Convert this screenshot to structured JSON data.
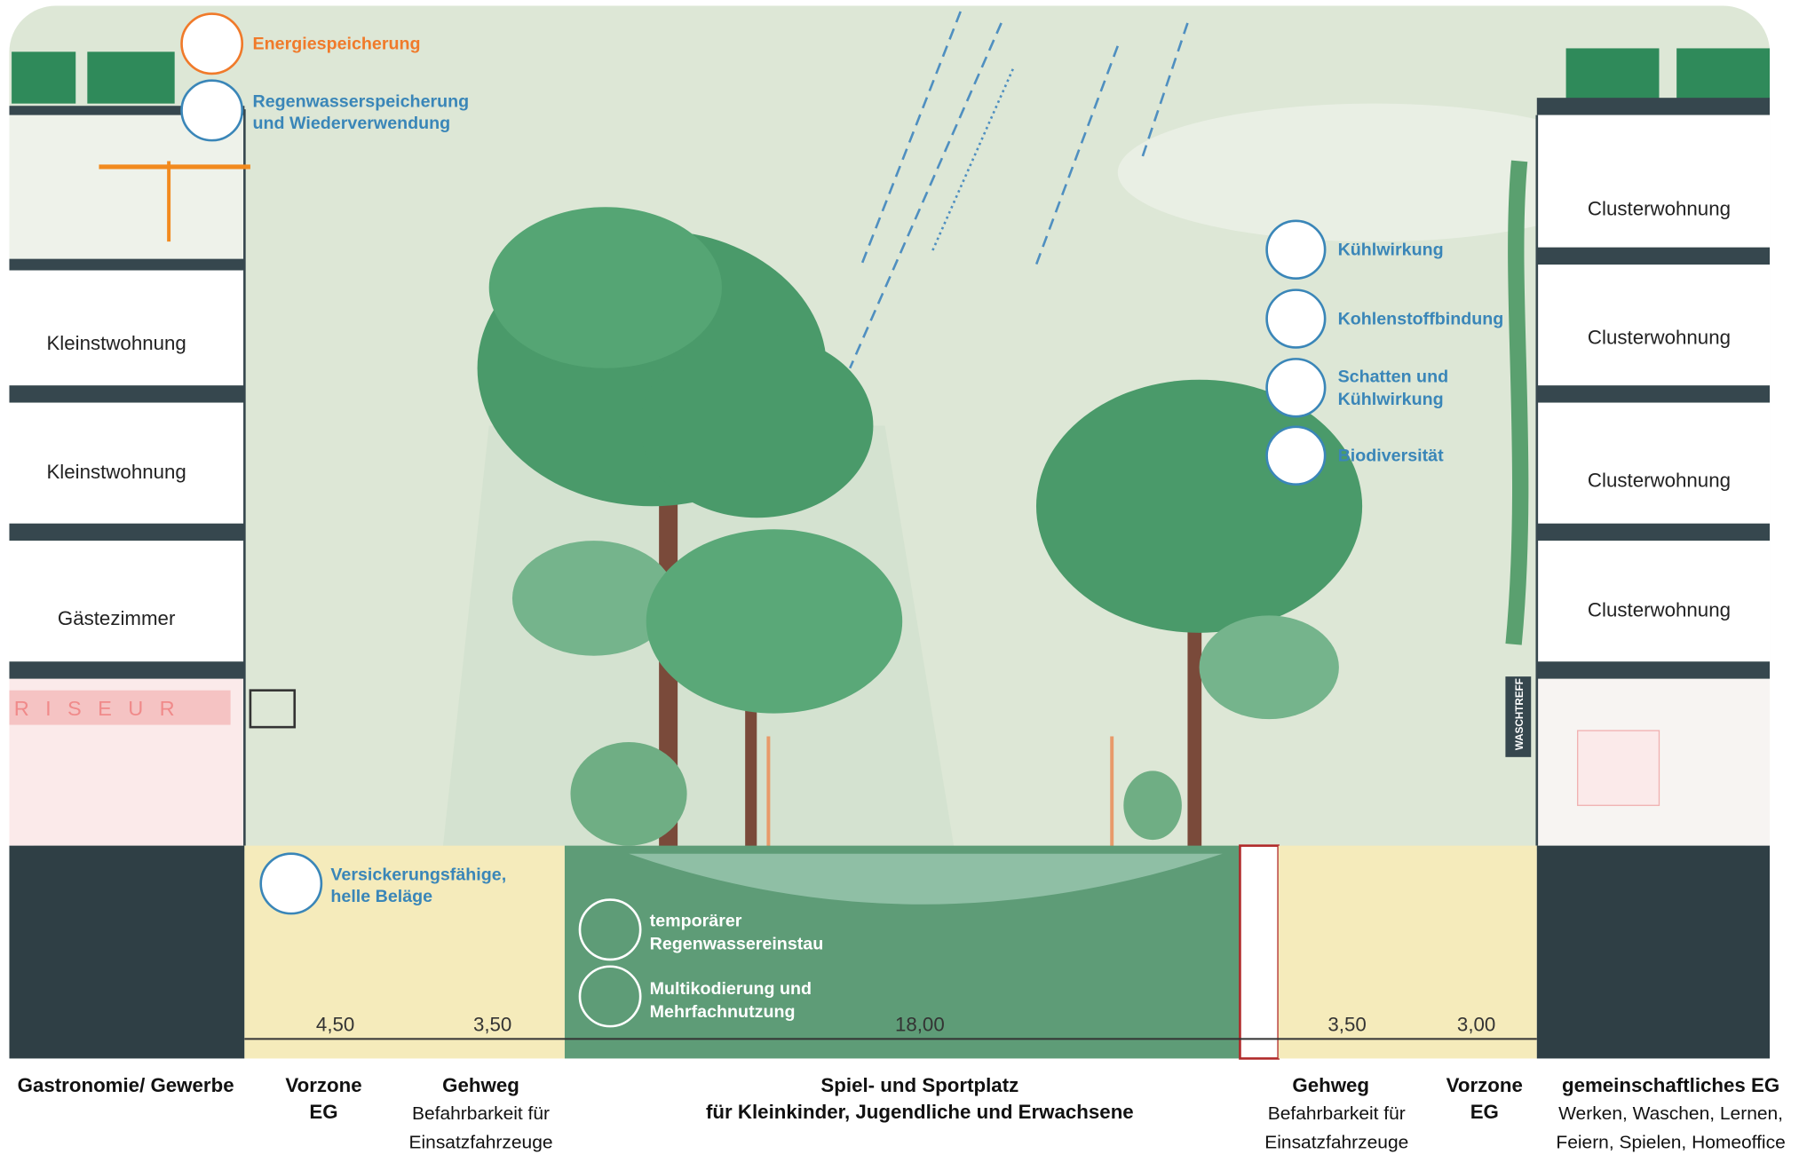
{
  "benefits_top": [
    [
      "Energiespeicherung"
    ],
    [
      "Regenwasserspeicherung",
      "und Wiederverwendung"
    ]
  ],
  "left_building": {
    "rooms": [
      "Kleinstwohnung",
      "Kleinstwohnung",
      "Gästezimmer"
    ],
    "shop_sign": "RISEUR"
  },
  "right_building": {
    "rooms": [
      "Clusterwohnung",
      "Clusterwohnung",
      "Clusterwohnung",
      "Clusterwohnung"
    ],
    "sign": "WASCHTREFF"
  },
  "benefits_right": [
    [
      "Kühlwirkung"
    ],
    [
      "Kohlenstoffbindung"
    ],
    [
      "Schatten und",
      "Kühlwirkung"
    ],
    [
      "Biodiversität"
    ]
  ],
  "ground_labels": [
    [
      "Versickerungsfähige,",
      "helle Beläge"
    ],
    [
      "temporärer",
      "Regenwassereinstau"
    ],
    [
      "Multikodierung und",
      "Mehrfachnutzung"
    ]
  ],
  "dimensions": [
    "4,50",
    "3,50",
    "18,00",
    "3,50",
    "3,00"
  ],
  "zones": [
    {
      "title": [
        "Gastronomie/ Gewerbe"
      ],
      "text": []
    },
    {
      "title": [
        "Vorzone",
        "EG"
      ],
      "text": []
    },
    {
      "title": [
        "Gehweg"
      ],
      "text": [
        "Befahrbarkeit für",
        "Einsatzfahrzeuge"
      ]
    },
    {
      "title": [
        "Spiel- und Sportplatz",
        "für Kleinkinder, Jugendliche und Erwachsene"
      ],
      "text": []
    },
    {
      "title": [
        "Gehweg"
      ],
      "text": [
        "Befahrbarkeit für",
        "Einsatzfahrzeuge"
      ]
    },
    {
      "title": [
        "Vorzone",
        "EG"
      ],
      "text": []
    },
    {
      "title": [
        "gemeinschaftliches EG"
      ],
      "text": [
        "Werken, Waschen, Lernen,",
        "Feiern, Spielen, Homeoffice"
      ]
    }
  ]
}
